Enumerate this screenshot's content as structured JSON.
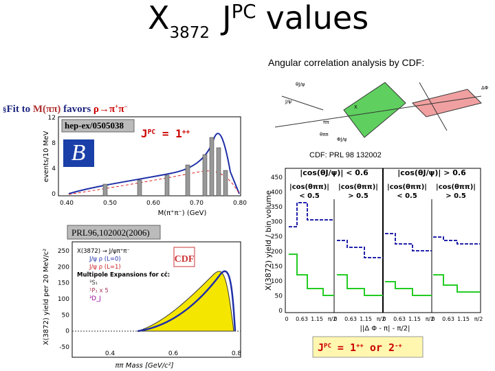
{
  "title": {
    "x": "X",
    "sub": "3872",
    "j": "J",
    "sup": "PC",
    "rest": "values"
  },
  "subtitle": "Angular correlation analysis by CDF:",
  "bullet": {
    "marker": "§",
    "lead": "Fit to ",
    "mass": "M(ππ)",
    "favors": " favors ",
    "rho": "ρ",
    "arrow": "→",
    "pi1": "π",
    "q1": "+",
    "pi2": "π",
    "q2": "−"
  },
  "plot1": {
    "ref": "hep-ex/0505038",
    "logo": "B",
    "jpc": {
      "j": "J",
      "sup": "PC",
      "eq": " = 1",
      "qn": "++"
    },
    "ylabel": "events/10 MeV",
    "xlabel": "M(π⁺π⁻) (GeV)",
    "yticks": [
      "12",
      "8",
      "4",
      "0"
    ],
    "xticks": [
      "0.40",
      "0.50",
      "0.60",
      "0.70",
      "0.80"
    ]
  },
  "diagram": {
    "labels": [
      "θJ/ψ",
      "J/ψ",
      "X",
      "ππ",
      "θππ",
      "ΔΦ",
      "ΦJ/ψ"
    ]
  },
  "plot3": {
    "ref": "CDF: PRL 98 132002",
    "ylabel": "X(3872) yield / bin volume",
    "yticks": [
      "450",
      "400",
      "350",
      "300",
      "250",
      "200",
      "150",
      "100",
      "50",
      "0"
    ],
    "headers": [
      "|cos(θJ/ψ)| < 0.6",
      "|cos(θJ/ψ)| > 0.6"
    ],
    "panels": [
      {
        "top": "|cos(θππ)|",
        "bottom": "< 0.5"
      },
      {
        "top": "|cos(θππ)|",
        "bottom": "> 0.5"
      },
      {
        "top": "|cos(θππ)|",
        "bottom": "< 0.5"
      },
      {
        "top": "|cos(θππ)|",
        "bottom": "> 0.5"
      }
    ],
    "xticks": [
      "0",
      "0.63",
      "1.15",
      "π/2"
    ],
    "xlabel": "||Δ Φ - π| - π/2|"
  },
  "plot4": {
    "ref": "PRL96,102002(2006)",
    "logo": "CDF",
    "ylabel": "X(3872) yield per 20 MeV/c²",
    "xlabel": "ππ Mass [GeV/c²]",
    "yticks": [
      "250",
      "200",
      "150",
      "100",
      "50",
      "0",
      "-50"
    ],
    "xticks": [
      "0.4",
      "0.6",
      "0.8"
    ],
    "legend": [
      "X(3872) → J/ψπ⁺π⁻",
      "J/ψ ρ (L=0)",
      "J/ψ ρ (L=1)",
      "Multipole Expansions for cc̄:",
      "³S₁",
      "¹P₁ x 5",
      "³D_J"
    ]
  },
  "result": {
    "j": "J",
    "sup": "PC",
    "eq": " = 1",
    "qn1": "++",
    "or": " or 2",
    "qn2": "-+"
  }
}
